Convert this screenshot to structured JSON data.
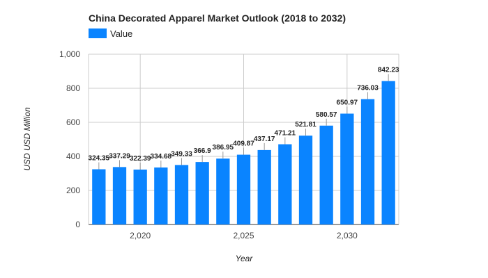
{
  "chart_data": {
    "type": "bar",
    "title": "China Decorated Apparel Market Outlook (2018 to 2032)",
    "xlabel": "Year",
    "ylabel": "USD USD Million",
    "legend": {
      "position": "top-left",
      "entries": [
        "Value"
      ]
    },
    "series_color": "#0A84FF",
    "grid": true,
    "ylim": [
      0,
      1000
    ],
    "yticks": [
      0,
      200,
      400,
      600,
      800,
      1000
    ],
    "ytick_labels": [
      "0",
      "200",
      "400",
      "600",
      "800",
      "1,000"
    ],
    "xticks": [
      2020,
      2025,
      2030
    ],
    "xtick_labels": [
      "2,020",
      "2,025",
      "2,030"
    ],
    "x": [
      2018,
      2019,
      2020,
      2021,
      2022,
      2023,
      2024,
      2025,
      2026,
      2027,
      2028,
      2029,
      2030,
      2031,
      2032
    ],
    "series": [
      {
        "name": "Value",
        "values": [
          324.35,
          337.29,
          322.39,
          334.68,
          349.33,
          366.9,
          386.95,
          409.87,
          437.17,
          471.21,
          521.81,
          580.57,
          650.97,
          736.03,
          842.23
        ],
        "labels": [
          "324.35",
          "337.29",
          "322.39",
          "334.68",
          "349.33",
          "366.9",
          "386.95",
          "409.87",
          "437.17",
          "471.21",
          "521.81",
          "580.57",
          "650.97",
          "736.03",
          "842.23"
        ]
      }
    ]
  }
}
